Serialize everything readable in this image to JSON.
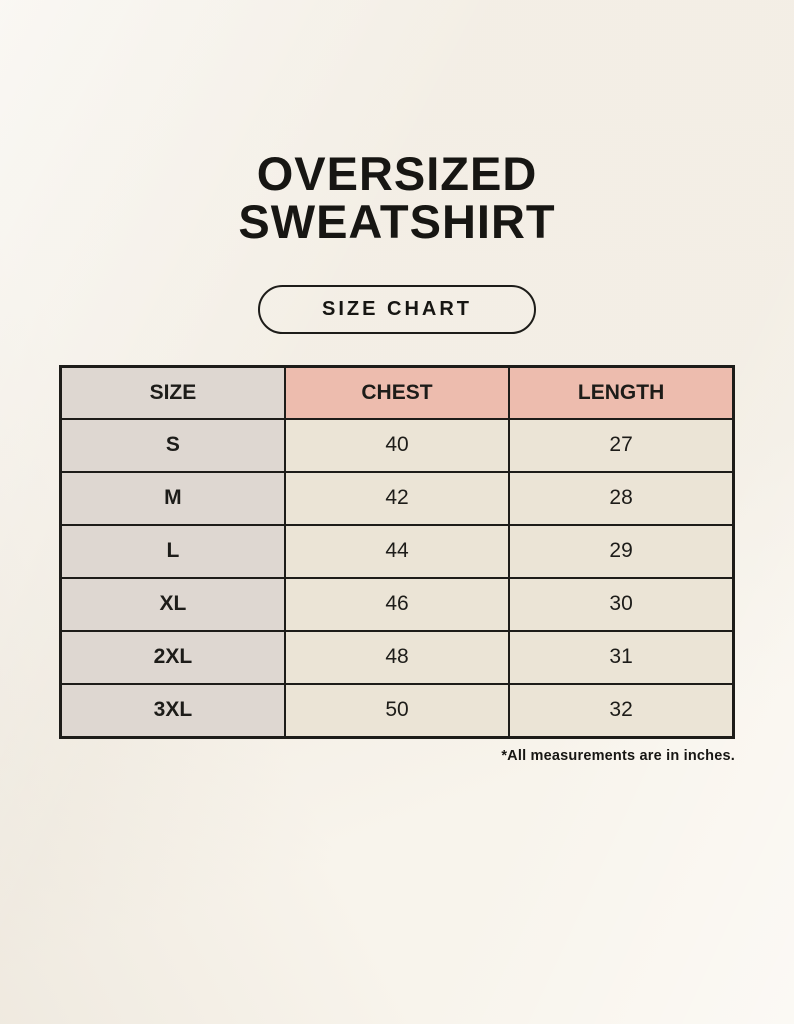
{
  "page": {
    "title_line1": "OVERSIZED",
    "title_line2": "SWEATSHIRT",
    "badge_label": "SIZE CHART",
    "footnote": "*All measurements are in inches."
  },
  "colors": {
    "background": "#f8f4ec",
    "header_pink": "#edbcae",
    "size_column_gray": "#ded7d1",
    "cell_cream": "#ebe4d6",
    "border_dark": "#1d1c19",
    "text_dark": "#171613"
  },
  "chart_data": {
    "type": "table",
    "title": "OVERSIZED SWEATSHIRT — SIZE CHART",
    "columns": [
      "SIZE",
      "CHEST",
      "LENGTH"
    ],
    "units": "inches",
    "rows": [
      {
        "size": "S",
        "chest": 40,
        "length": 27
      },
      {
        "size": "M",
        "chest": 42,
        "length": 28
      },
      {
        "size": "L",
        "chest": 44,
        "length": 29
      },
      {
        "size": "XL",
        "chest": 46,
        "length": 30
      },
      {
        "size": "2XL",
        "chest": 48,
        "length": 31
      },
      {
        "size": "3XL",
        "chest": 50,
        "length": 32
      }
    ]
  }
}
